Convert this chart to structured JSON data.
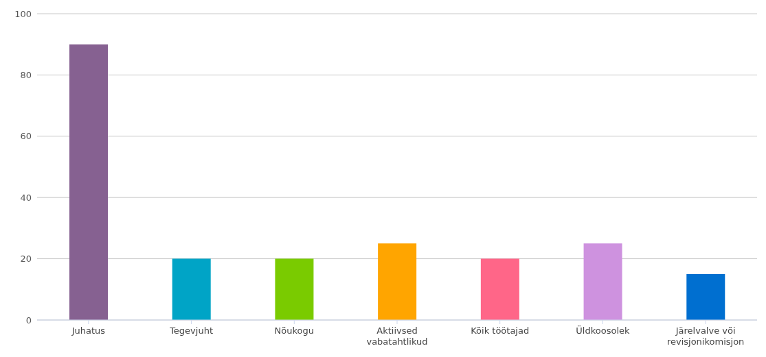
{
  "chart_data": {
    "type": "bar",
    "categories": [
      "Juhatus",
      "Tegevjuht",
      "Nõukogu",
      "Aktiivsed vabatahtlikud",
      "Kõik töötajad",
      "Üldkoosolek",
      "Järelvalve või revisjonikomisjon"
    ],
    "values": [
      90,
      20,
      20,
      25,
      20,
      25,
      15
    ],
    "colors": [
      "#866191",
      "#00a4c6",
      "#7acb00",
      "#ffa500",
      "#ff6688",
      "#ce92df",
      "#006fd0"
    ],
    "ylim": [
      0,
      100
    ],
    "yticks": [
      0,
      20,
      40,
      60,
      80,
      100
    ],
    "grid": "y"
  }
}
